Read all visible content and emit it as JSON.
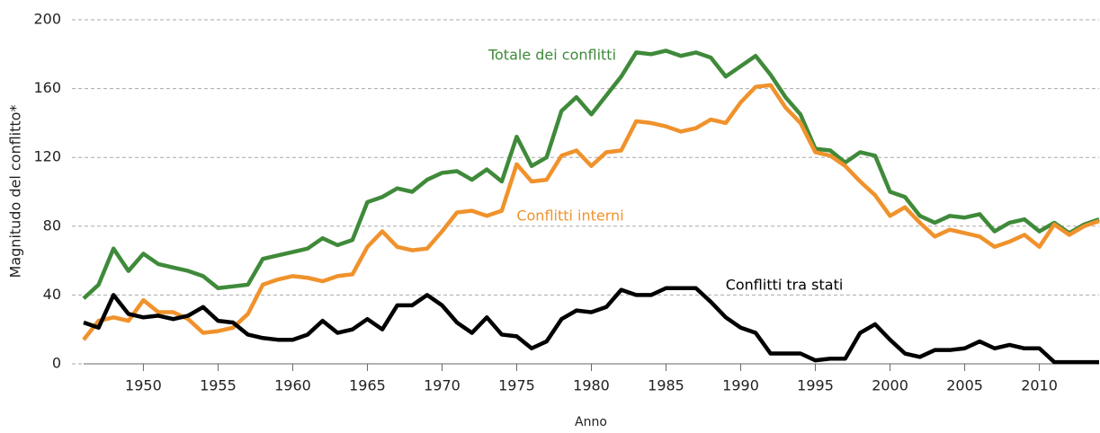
{
  "chart_data": {
    "type": "line",
    "x_label": "Anno",
    "y_label": "Magnitudo del conflitto*",
    "x": [
      1946,
      1947,
      1948,
      1949,
      1950,
      1951,
      1952,
      1953,
      1954,
      1955,
      1956,
      1957,
      1958,
      1959,
      1960,
      1961,
      1962,
      1963,
      1964,
      1965,
      1966,
      1967,
      1968,
      1969,
      1970,
      1971,
      1972,
      1973,
      1974,
      1975,
      1976,
      1977,
      1978,
      1979,
      1980,
      1981,
      1982,
      1983,
      1984,
      1985,
      1986,
      1987,
      1988,
      1989,
      1990,
      1991,
      1992,
      1993,
      1994,
      1995,
      1996,
      1997,
      1998,
      1999,
      2000,
      2001,
      2002,
      2003,
      2004,
      2005,
      2006,
      2007,
      2008,
      2009,
      2010,
      2011,
      2012,
      2013,
      2014
    ],
    "series": [
      {
        "name": "Totale dei conflitti",
        "color": "#3f8a3a",
        "values": [
          38,
          46,
          67,
          54,
          64,
          58,
          56,
          54,
          51,
          44,
          45,
          46,
          61,
          63,
          65,
          67,
          73,
          69,
          72,
          94,
          97,
          102,
          100,
          107,
          111,
          112,
          107,
          113,
          106,
          132,
          115,
          120,
          147,
          155,
          145,
          156,
          167,
          181,
          180,
          182,
          179,
          181,
          178,
          167,
          173,
          179,
          168,
          155,
          145,
          125,
          124,
          117,
          123,
          121,
          100,
          97,
          86,
          82,
          86,
          85,
          87,
          77,
          82,
          84,
          77,
          82,
          76,
          81,
          84
        ]
      },
      {
        "name": "Conflitti interni",
        "color": "#f0922c",
        "values": [
          14,
          25,
          27,
          25,
          37,
          30,
          30,
          26,
          18,
          19,
          21,
          29,
          46,
          49,
          51,
          50,
          48,
          51,
          52,
          68,
          77,
          68,
          66,
          67,
          77,
          88,
          89,
          86,
          89,
          116,
          106,
          107,
          121,
          124,
          115,
          123,
          124,
          141,
          140,
          138,
          135,
          137,
          142,
          140,
          152,
          161,
          162,
          149,
          140,
          123,
          121,
          115,
          106,
          98,
          86,
          91,
          82,
          74,
          78,
          76,
          74,
          68,
          71,
          75,
          68,
          81,
          75,
          80,
          83
        ]
      },
      {
        "name": "Conflitti tra stati",
        "color": "#000000",
        "values": [
          24,
          21,
          40,
          29,
          27,
          28,
          26,
          28,
          33,
          25,
          24,
          17,
          15,
          14,
          14,
          17,
          25,
          18,
          20,
          26,
          20,
          34,
          34,
          40,
          34,
          24,
          18,
          27,
          17,
          16,
          9,
          13,
          26,
          31,
          30,
          33,
          43,
          40,
          40,
          44,
          44,
          44,
          36,
          27,
          21,
          18,
          6,
          6,
          6,
          2,
          3,
          3,
          18,
          23,
          14,
          6,
          4,
          8,
          8,
          9,
          13,
          9,
          11,
          9,
          9,
          1,
          1,
          1,
          1
        ]
      }
    ],
    "xlim": [
      1946,
      2014
    ],
    "xticks": [
      1950,
      1955,
      1960,
      1965,
      1970,
      1975,
      1980,
      1985,
      1990,
      1995,
      2000,
      2005,
      2010
    ],
    "ylim": [
      0,
      200
    ],
    "yticks": [
      0,
      40,
      80,
      120,
      160,
      200
    ],
    "grid": true
  }
}
